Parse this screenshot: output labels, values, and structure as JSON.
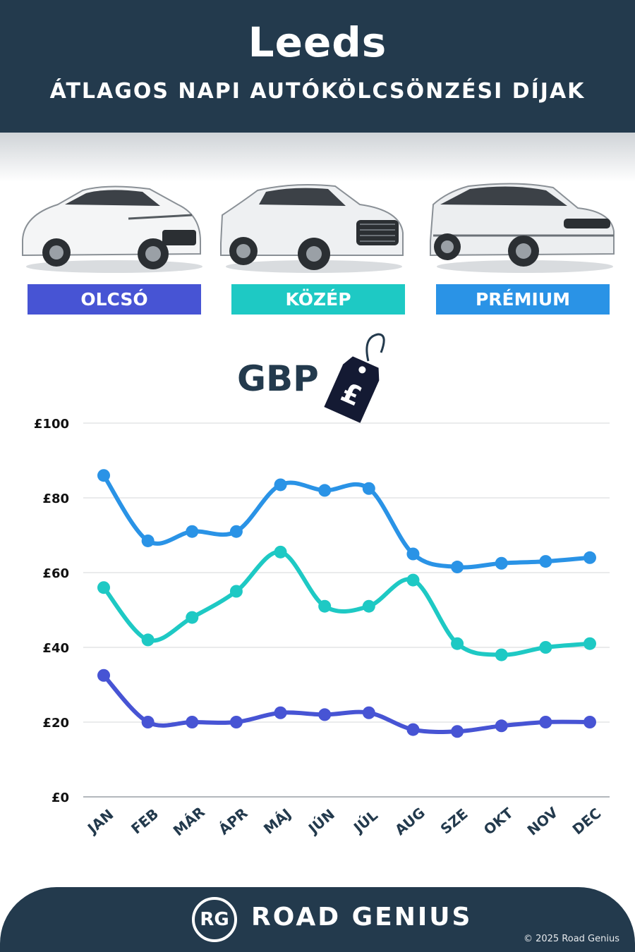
{
  "header": {
    "city": "Leeds",
    "subtitle": "ÁTLAGOS NAPI AUTÓKÖLCSÖNZÉSI DÍJAK"
  },
  "categories": [
    {
      "label": "OLCSÓ",
      "color": "#4754d4"
    },
    {
      "label": "KÖZÉP",
      "color": "#1ec9c4"
    },
    {
      "label": "PRÉMIUM",
      "color": "#2a93e6"
    }
  ],
  "currency": {
    "label": "GBP",
    "tag_symbol": "£",
    "tag_icon": "price-tag-icon"
  },
  "chart_data": {
    "type": "line",
    "x": [
      "JAN",
      "FEB",
      "MÁR",
      "ÁPR",
      "MÁJ",
      "JÚN",
      "JÚL",
      "AUG",
      "SZE",
      "OKT",
      "NOV",
      "DEC"
    ],
    "yticks": [
      "£0",
      "£20",
      "£40",
      "£60",
      "£80",
      "£100"
    ],
    "ylim": [
      0,
      100
    ],
    "grid": true,
    "series": [
      {
        "name": "PRÉMIUM",
        "color": "#2a93e6",
        "values": [
          86,
          68.5,
          71,
          71,
          83.5,
          82,
          82.5,
          65,
          61.5,
          62.5,
          63,
          64
        ]
      },
      {
        "name": "KÖZÉP",
        "color": "#1ec9c4",
        "values": [
          56,
          42,
          48,
          55,
          65.5,
          51,
          51,
          58,
          41,
          38,
          40,
          41
        ]
      },
      {
        "name": "OLCSÓ",
        "color": "#4754d4",
        "values": [
          32.5,
          20,
          20,
          20,
          22.5,
          22,
          22.5,
          18,
          17.5,
          19,
          20,
          20
        ]
      }
    ]
  },
  "footer": {
    "logo_text": "RG",
    "brand": "ROAD GENIUS",
    "copyright": "© 2025 Road Genius"
  }
}
